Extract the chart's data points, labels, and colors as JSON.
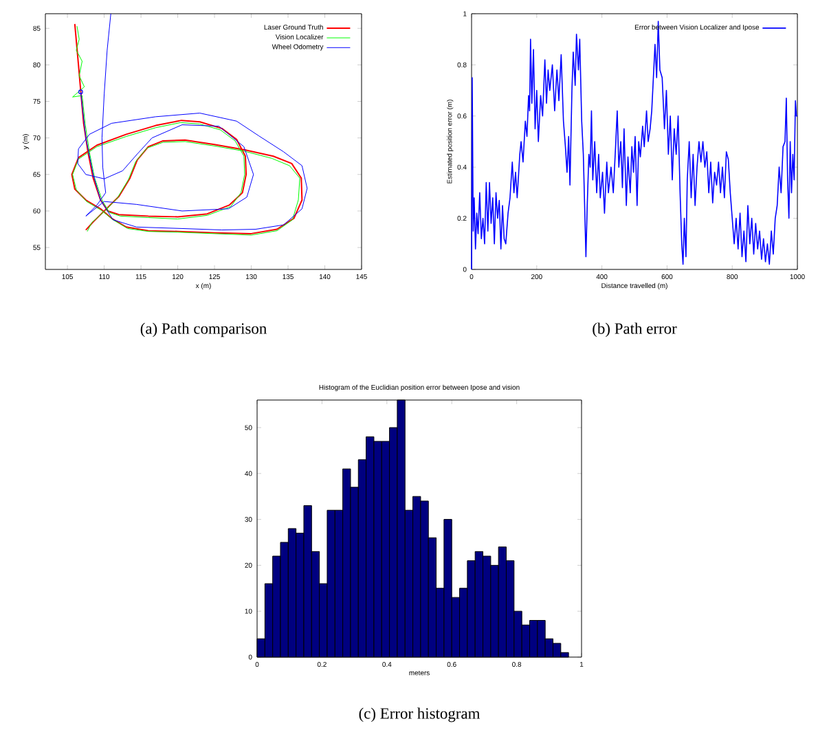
{
  "chart_data": [
    {
      "type": "line",
      "xlabel": "x (m)",
      "ylabel": "y (m)",
      "xlim": [
        102,
        145
      ],
      "ylim": [
        52,
        87
      ],
      "xticks": [
        105,
        110,
        115,
        120,
        125,
        130,
        135,
        140,
        145
      ],
      "yticks": [
        55,
        60,
        65,
        70,
        75,
        80,
        85
      ],
      "legend": "top right",
      "annotations": [
        "(a) Path comparison"
      ],
      "series": [
        {
          "name": "Laser Ground Truth",
          "color": "#ff0000",
          "x": [
            106,
            106.5,
            106.8,
            107.2,
            107.8,
            108.5,
            109.5,
            110.5,
            112,
            116,
            120,
            124,
            127,
            128.8,
            129.3,
            129.2,
            128,
            126,
            123,
            120.5,
            117,
            113,
            109,
            106.5,
            105.6,
            106,
            107.5,
            109.5,
            111,
            113,
            116,
            120,
            125,
            130,
            133.5,
            135.8,
            136.9,
            136.8,
            135.5,
            133,
            129,
            125,
            121,
            118,
            116,
            114.5,
            113.5,
            112,
            110.5,
            108.5,
            107.5
          ],
          "values": [
            85.6,
            80,
            76.5,
            72,
            68,
            64.5,
            61.5,
            60,
            59.5,
            59.3,
            59.2,
            59.6,
            60.8,
            62.5,
            65,
            67.5,
            69.8,
            71.3,
            72.2,
            72.4,
            71.7,
            70.5,
            69,
            67.3,
            65,
            63,
            61.5,
            60.3,
            59,
            57.8,
            57.3,
            57.2,
            57,
            56.9,
            57.5,
            59,
            61.5,
            64.5,
            66.5,
            67.5,
            68.4,
            69.1,
            69.7,
            69.6,
            68.8,
            67,
            64.5,
            62,
            60.5,
            58.5,
            57.4
          ]
        },
        {
          "name": "Vision Localizer",
          "color": "#00ff00",
          "x": [
            106.3,
            106.6,
            106.2,
            107,
            106.6,
            107.3,
            105.7,
            107,
            107.4,
            108,
            108.7,
            109.7,
            110.7,
            112.2,
            116,
            120,
            124,
            127.2,
            128.6,
            129.1,
            129,
            127.8,
            125.8,
            123,
            120.4,
            117,
            113,
            109,
            106.5,
            105.7,
            106.2,
            107.6,
            109.6,
            111.2,
            113.2,
            116,
            120,
            125,
            130,
            133.5,
            135.6,
            136.4,
            136.6,
            135.2,
            132.8,
            129,
            125,
            121,
            118,
            115.8,
            114.3,
            113.3,
            111.8,
            110.3,
            108.3,
            107.7
          ],
          "values": [
            85.3,
            83.5,
            82,
            80.5,
            78.5,
            77,
            75.6,
            75.8,
            72,
            68,
            64.5,
            61.5,
            59.8,
            59.3,
            59.1,
            58.9,
            59.4,
            60.6,
            62.5,
            65,
            67.5,
            69.6,
            71.1,
            71.9,
            72.1,
            71.4,
            70.2,
            68.8,
            67.1,
            65,
            62.9,
            61.3,
            60.1,
            58.8,
            57.6,
            57.2,
            57.1,
            56.9,
            56.7,
            57.3,
            58.8,
            61.5,
            64.5,
            66.2,
            67.2,
            68.2,
            68.9,
            69.5,
            69.4,
            68.6,
            66.8,
            64.3,
            61.8,
            60.2,
            58.4,
            57.2
          ]
        },
        {
          "name": "Wheel Odometry",
          "color": "#0000ff",
          "x": [
            106.8,
            107.5,
            108.5,
            109.5,
            111.2,
            114.4,
            120.6,
            126,
            130.6,
            134.4,
            136.9,
            137.6,
            136.9,
            134.4,
            131,
            128,
            123,
            117,
            111,
            108,
            106.5,
            106.4,
            107.5,
            110,
            112.5,
            114.5,
            116.5,
            120.6,
            125.6,
            129,
            130.3,
            129.4,
            126.9,
            120.6,
            114.4,
            110,
            107.5,
            109,
            110.2,
            109.8,
            109.7,
            110,
            110.4,
            110.9
          ],
          "values": [
            76.3,
            70,
            65,
            61.5,
            58.8,
            57.8,
            57.6,
            57.4,
            57.5,
            58.1,
            60.3,
            63.1,
            66.2,
            68.1,
            70.3,
            72.3,
            73.4,
            72.9,
            72,
            70.5,
            68.5,
            66.5,
            65,
            64.4,
            65.5,
            67.8,
            70,
            71.8,
            71.6,
            68.8,
            65,
            61.9,
            60.3,
            60,
            60.9,
            61.3,
            59.3,
            60.8,
            62.5,
            66,
            70,
            76,
            82,
            87
          ]
        },
        {
          "type": "scatter",
          "marker": "circle",
          "color": "#0000ff",
          "x": [
            106.8
          ],
          "values": [
            76.3
          ]
        }
      ]
    },
    {
      "type": "line",
      "xlabel": "Distance travelled (m)",
      "ylabel": "Estimated position error (m)",
      "xlim": [
        0,
        1000
      ],
      "ylim": [
        0,
        1
      ],
      "xticks": [
        0,
        200,
        400,
        600,
        800,
        1000
      ],
      "yticks": [
        0,
        0.2,
        0.4,
        0.6,
        0.8,
        1
      ],
      "legend": "top right",
      "annotations": [
        "(b) Path error"
      ],
      "series": [
        {
          "name": "Error between Vision Localizer and Ipose",
          "color": "#0000ff",
          "x": [
            0,
            2,
            5,
            8,
            12,
            16,
            20,
            25,
            30,
            35,
            40,
            45,
            50,
            55,
            60,
            65,
            70,
            75,
            80,
            85,
            90,
            95,
            100,
            105,
            112,
            118,
            125,
            130,
            135,
            140,
            148,
            152,
            158,
            165,
            170,
            175,
            178,
            181,
            185,
            190,
            195,
            200,
            205,
            212,
            218,
            225,
            230,
            235,
            240,
            248,
            255,
            262,
            268,
            275,
            282,
            288,
            293,
            298,
            302,
            308,
            312,
            318,
            322,
            328,
            332,
            338,
            343,
            348,
            351,
            355,
            360,
            364,
            368,
            372,
            378,
            384,
            390,
            395,
            402,
            408,
            415,
            420,
            428,
            435,
            442,
            447,
            452,
            458,
            463,
            468,
            475,
            480,
            487,
            492,
            497,
            502,
            508,
            513,
            518,
            525,
            530,
            537,
            542,
            548,
            553,
            558,
            563,
            568,
            573,
            578,
            585,
            592,
            598,
            604,
            610,
            616,
            622,
            628,
            634,
            640,
            645,
            649,
            653,
            658,
            662,
            668,
            674,
            680,
            686,
            692,
            698,
            704,
            710,
            716,
            722,
            728,
            734,
            740,
            746,
            752,
            758,
            764,
            770,
            776,
            782,
            788,
            794,
            800,
            806,
            812,
            818,
            824,
            830,
            836,
            842,
            848,
            854,
            860,
            866,
            872,
            878,
            884,
            890,
            896,
            902,
            908,
            914,
            920,
            926,
            932,
            938,
            944,
            950,
            956,
            962,
            966,
            970,
            974,
            978,
            982,
            986,
            990,
            994,
            997,
            1000
          ],
          "values": [
            0,
            0.75,
            0.15,
            0.28,
            0.08,
            0.22,
            0.14,
            0.3,
            0.12,
            0.2,
            0.1,
            0.34,
            0.15,
            0.34,
            0.18,
            0.28,
            0.1,
            0.3,
            0.2,
            0.27,
            0.08,
            0.25,
            0.12,
            0.1,
            0.22,
            0.28,
            0.42,
            0.3,
            0.38,
            0.28,
            0.45,
            0.5,
            0.42,
            0.58,
            0.52,
            0.68,
            0.62,
            0.9,
            0.65,
            0.86,
            0.55,
            0.7,
            0.5,
            0.68,
            0.6,
            0.82,
            0.65,
            0.78,
            0.7,
            0.8,
            0.62,
            0.78,
            0.66,
            0.84,
            0.58,
            0.48,
            0.38,
            0.52,
            0.33,
            0.7,
            0.85,
            0.72,
            0.92,
            0.78,
            0.9,
            0.58,
            0.45,
            0.2,
            0.05,
            0.25,
            0.45,
            0.4,
            0.62,
            0.35,
            0.5,
            0.3,
            0.45,
            0.28,
            0.38,
            0.22,
            0.42,
            0.3,
            0.4,
            0.3,
            0.48,
            0.62,
            0.4,
            0.5,
            0.32,
            0.55,
            0.25,
            0.44,
            0.3,
            0.48,
            0.38,
            0.52,
            0.25,
            0.5,
            0.44,
            0.56,
            0.48,
            0.62,
            0.5,
            0.55,
            0.62,
            0.75,
            0.88,
            0.75,
            0.97,
            0.78,
            0.75,
            0.55,
            0.7,
            0.45,
            0.6,
            0.35,
            0.55,
            0.45,
            0.6,
            0.3,
            0.1,
            0.02,
            0.2,
            0.05,
            0.35,
            0.5,
            0.28,
            0.45,
            0.25,
            0.4,
            0.5,
            0.42,
            0.5,
            0.4,
            0.46,
            0.3,
            0.42,
            0.26,
            0.38,
            0.33,
            0.42,
            0.3,
            0.4,
            0.28,
            0.46,
            0.43,
            0.3,
            0.2,
            0.1,
            0.2,
            0.08,
            0.22,
            0.05,
            0.15,
            0.03,
            0.25,
            0.1,
            0.2,
            0.06,
            0.18,
            0.08,
            0.15,
            0.04,
            0.12,
            0.03,
            0.1,
            0.02,
            0.15,
            0.06,
            0.2,
            0.25,
            0.4,
            0.3,
            0.48,
            0.5,
            0.67,
            0.35,
            0.2,
            0.5,
            0.3,
            0.45,
            0.35,
            0.66,
            0.6,
            0.6
          ]
        }
      ]
    },
    {
      "type": "histogram",
      "title": "Histogram of the Euclidian position error between Ipose and vision",
      "xlabel": "meters",
      "xlim": [
        0,
        1
      ],
      "ylim": [
        0,
        56
      ],
      "xticks": [
        0,
        0.2,
        0.4,
        0.6,
        0.8,
        1
      ],
      "yticks": [
        0,
        10,
        20,
        30,
        40,
        50
      ],
      "color": "#000080",
      "annotations": [
        "(c) Error histogram"
      ],
      "bins": [
        0,
        0.024,
        0.048,
        0.072,
        0.096,
        0.12,
        0.144,
        0.168,
        0.192,
        0.216,
        0.24,
        0.264,
        0.288,
        0.312,
        0.336,
        0.36,
        0.384,
        0.408,
        0.432,
        0.456,
        0.48,
        0.504,
        0.528,
        0.552,
        0.576,
        0.6,
        0.624,
        0.648,
        0.672,
        0.696,
        0.72,
        0.744,
        0.768,
        0.792,
        0.816,
        0.84,
        0.864,
        0.888,
        0.912,
        0.936,
        0.96
      ],
      "values": [
        4,
        16,
        22,
        25,
        28,
        27,
        33,
        23,
        16,
        32,
        32,
        41,
        37,
        43,
        48,
        47,
        47,
        50,
        56,
        32,
        35,
        34,
        26,
        15,
        30,
        13,
        15,
        21,
        23,
        22,
        20,
        24,
        21,
        10,
        7,
        8,
        8,
        4,
        3,
        1
      ]
    }
  ]
}
